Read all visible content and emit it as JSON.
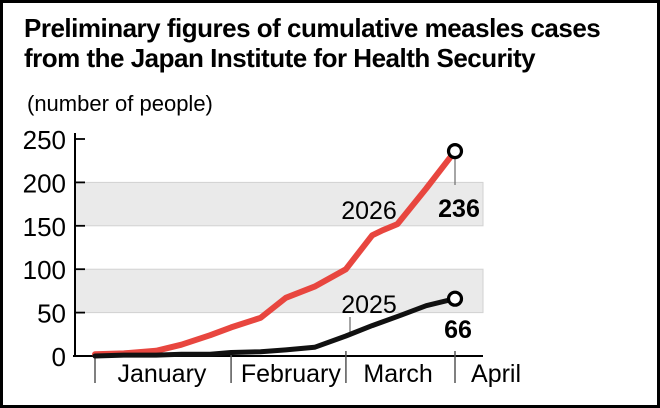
{
  "title": {
    "line1": "Preliminary figures of cumulative measles cases",
    "line2": "from the Japan Institute for Health Security"
  },
  "chart_data": {
    "type": "line",
    "title": "Preliminary figures of cumulative measles cases from the Japan Institute for Health Security",
    "unit_label": "(number of people)",
    "xlabel": "",
    "ylabel": "(number of people)",
    "ylim": [
      0,
      250
    ],
    "yticks": [
      0,
      50,
      100,
      150,
      200,
      250
    ],
    "grid": false,
    "legend_position": "inline-labels",
    "shaded_bands": [
      [
        50,
        100
      ],
      [
        150,
        200
      ]
    ],
    "band_color": "#eaeaea",
    "months": [
      {
        "label": "January"
      },
      {
        "label": "February"
      },
      {
        "label": "March"
      },
      {
        "label": "April"
      }
    ],
    "series": [
      {
        "name": "2026",
        "color": "#e8463f",
        "end_label": "236",
        "end_value": 236,
        "points": [
          [
            0.0,
            2
          ],
          [
            0.08,
            3
          ],
          [
            0.17,
            6
          ],
          [
            0.24,
            13
          ],
          [
            0.32,
            24
          ],
          [
            0.378,
            33
          ],
          [
            0.46,
            44
          ],
          [
            0.53,
            67
          ],
          [
            0.61,
            80
          ],
          [
            0.697,
            100
          ],
          [
            0.77,
            139
          ],
          [
            0.8,
            145
          ],
          [
            0.84,
            152
          ],
          [
            0.92,
            193
          ],
          [
            1.0,
            236
          ]
        ]
      },
      {
        "name": "2025",
        "color": "#111111",
        "end_label": "66",
        "end_value": 66,
        "points": [
          [
            0.0,
            0
          ],
          [
            0.08,
            1
          ],
          [
            0.17,
            1
          ],
          [
            0.24,
            2
          ],
          [
            0.32,
            2
          ],
          [
            0.378,
            4
          ],
          [
            0.46,
            5
          ],
          [
            0.53,
            7
          ],
          [
            0.61,
            10
          ],
          [
            0.697,
            23
          ],
          [
            0.77,
            35
          ],
          [
            0.85,
            47
          ],
          [
            0.92,
            58
          ],
          [
            1.0,
            66
          ]
        ]
      }
    ]
  }
}
